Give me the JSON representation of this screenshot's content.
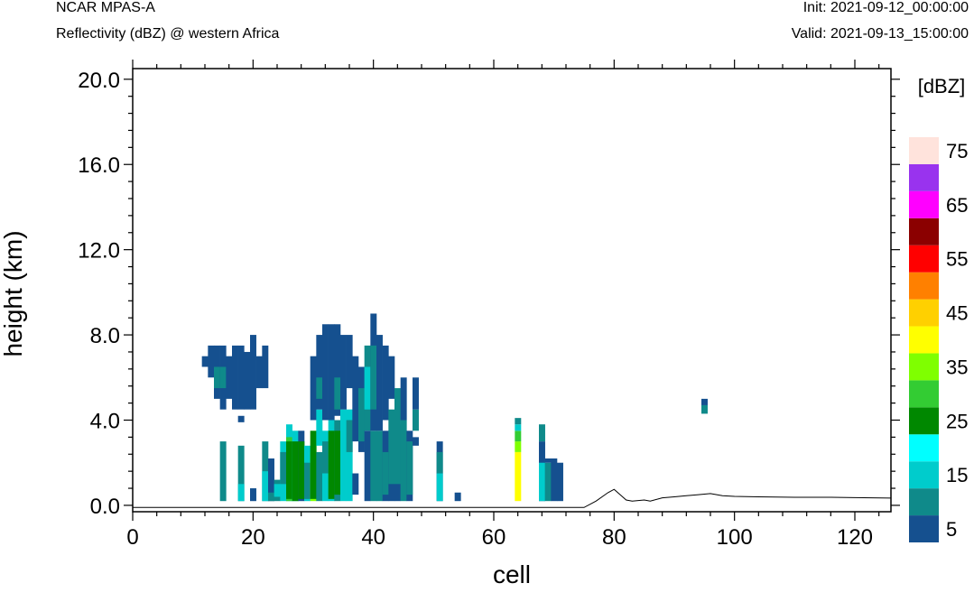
{
  "header": {
    "model": "NCAR MPAS-A",
    "field": "Reflectivity (dBZ) @ western Africa",
    "init": "Init: 2021-09-12_00:00:00",
    "valid": "Valid: 2021-09-13_15:00:00"
  },
  "chart_data": {
    "type": "heatmap",
    "xlabel": "cell",
    "ylabel": "height (km)",
    "xlim": [
      0,
      126
    ],
    "ylim": [
      -0.3,
      20.5
    ],
    "x_ticks": [
      0,
      20,
      40,
      60,
      80,
      100,
      120
    ],
    "y_ticks": [
      0,
      4,
      8,
      12,
      16,
      20
    ],
    "y_tick_labels": [
      "0.0",
      "4.0",
      "8.0",
      "12.0",
      "16.0",
      "20.0"
    ],
    "grid": false,
    "colorbar": {
      "unit": "[dBZ]",
      "levels": [
        5,
        10,
        15,
        20,
        25,
        30,
        35,
        40,
        45,
        50,
        55,
        60,
        65,
        70,
        75
      ],
      "labels": [
        "5",
        "15",
        "25",
        "35",
        "45",
        "55",
        "65",
        "75"
      ],
      "colors": [
        "#15508f",
        "#0f8a8a",
        "#00cccc",
        "#00ffff",
        "#008800",
        "#33cc33",
        "#7fff00",
        "#ffff00",
        "#ffd000",
        "#ff8000",
        "#ff0000",
        "#8b0000",
        "#ff00ff",
        "#9933ee",
        "#ffe3dc"
      ]
    },
    "terrain": [
      [
        0,
        -0.1
      ],
      [
        75,
        -0.1
      ],
      [
        77,
        0.2
      ],
      [
        79,
        0.6
      ],
      [
        80,
        0.75
      ],
      [
        81,
        0.5
      ],
      [
        82,
        0.25
      ],
      [
        83,
        0.2
      ],
      [
        85,
        0.25
      ],
      [
        86,
        0.2
      ],
      [
        88,
        0.35
      ],
      [
        90,
        0.4
      ],
      [
        92,
        0.45
      ],
      [
        94,
        0.5
      ],
      [
        96,
        0.55
      ],
      [
        98,
        0.45
      ],
      [
        100,
        0.42
      ],
      [
        104,
        0.4
      ],
      [
        110,
        0.38
      ],
      [
        116,
        0.38
      ],
      [
        120,
        0.36
      ],
      [
        126,
        0.34
      ]
    ],
    "columns": [
      {
        "cell": 12,
        "segments": [
          [
            6.5,
            7.0,
            5
          ]
        ]
      },
      {
        "cell": 13,
        "segments": [
          [
            6.0,
            7.5,
            5
          ]
        ]
      },
      {
        "cell": 14,
        "segments": [
          [
            5.0,
            7.5,
            5
          ],
          [
            5.5,
            6.5,
            10
          ]
        ]
      },
      {
        "cell": 15,
        "segments": [
          [
            0.2,
            3.0,
            10
          ],
          [
            4.5,
            7.5,
            5
          ],
          [
            5.5,
            6.5,
            10
          ]
        ]
      },
      {
        "cell": 16,
        "segments": [
          [
            5.0,
            7.0,
            5
          ]
        ]
      },
      {
        "cell": 17,
        "segments": [
          [
            4.5,
            7.5,
            5
          ]
        ]
      },
      {
        "cell": 18,
        "segments": [
          [
            0.2,
            2.8,
            10
          ],
          [
            0.2,
            1.0,
            15
          ],
          [
            3.9,
            4.2,
            5
          ],
          [
            4.5,
            7.5,
            5
          ]
        ]
      },
      {
        "cell": 19,
        "segments": [
          [
            4.5,
            7.2,
            5
          ]
        ]
      },
      {
        "cell": 20,
        "segments": [
          [
            0.2,
            0.8,
            5
          ],
          [
            4.5,
            8.0,
            5
          ]
        ]
      },
      {
        "cell": 21,
        "segments": [
          [
            5.5,
            7.0,
            5
          ]
        ]
      },
      {
        "cell": 22,
        "segments": [
          [
            0.2,
            3.0,
            10
          ],
          [
            0.2,
            1.6,
            15
          ],
          [
            5.5,
            7.5,
            5
          ]
        ]
      },
      {
        "cell": 23,
        "segments": [
          [
            0.2,
            2.2,
            5
          ],
          [
            0.2,
            0.6,
            10
          ]
        ]
      },
      {
        "cell": 24,
        "segments": [
          [
            0.2,
            1.2,
            10
          ],
          [
            0.4,
            1.0,
            15
          ]
        ]
      },
      {
        "cell": 25,
        "segments": [
          [
            0.2,
            3.0,
            15
          ],
          [
            1.0,
            2.5,
            10
          ]
        ]
      },
      {
        "cell": 26,
        "segments": [
          [
            0.2,
            3.8,
            15
          ],
          [
            0.2,
            3.2,
            30
          ],
          [
            0.3,
            3.0,
            25
          ]
        ]
      },
      {
        "cell": 27,
        "segments": [
          [
            0.2,
            3.5,
            15
          ],
          [
            0.2,
            3.0,
            25
          ]
        ]
      },
      {
        "cell": 28,
        "segments": [
          [
            0.2,
            3.5,
            5
          ],
          [
            0.3,
            3.0,
            25
          ]
        ]
      },
      {
        "cell": 29,
        "segments": [
          [
            0.2,
            2.8,
            15
          ],
          [
            0.3,
            2.0,
            10
          ]
        ]
      },
      {
        "cell": 30,
        "segments": [
          [
            0.2,
            2.5,
            35
          ],
          [
            0.3,
            3.5,
            25
          ],
          [
            4.0,
            7.0,
            5
          ]
        ]
      },
      {
        "cell": 31,
        "segments": [
          [
            0.2,
            2.5,
            10
          ],
          [
            2.8,
            4.5,
            15
          ],
          [
            4.5,
            8.0,
            5
          ],
          [
            5.0,
            6.0,
            10
          ]
        ]
      },
      {
        "cell": 32,
        "segments": [
          [
            0.2,
            3.5,
            15
          ],
          [
            1.5,
            3.0,
            10
          ],
          [
            4.0,
            8.5,
            5
          ]
        ]
      },
      {
        "cell": 33,
        "segments": [
          [
            0.2,
            4.0,
            15
          ],
          [
            0.3,
            3.5,
            25
          ],
          [
            4.0,
            8.5,
            5
          ]
        ]
      },
      {
        "cell": 34,
        "segments": [
          [
            0.2,
            4.0,
            10
          ],
          [
            0.5,
            3.5,
            25
          ],
          [
            4.2,
            8.5,
            5
          ],
          [
            4.5,
            6.0,
            10
          ]
        ]
      },
      {
        "cell": 35,
        "segments": [
          [
            0.2,
            4.5,
            15
          ],
          [
            4.5,
            8.0,
            5
          ]
        ]
      },
      {
        "cell": 36,
        "segments": [
          [
            0.2,
            4.5,
            15
          ],
          [
            2.5,
            4.0,
            10
          ],
          [
            5.5,
            8.0,
            5
          ]
        ]
      },
      {
        "cell": 37,
        "segments": [
          [
            0.5,
            1.5,
            5
          ],
          [
            3.0,
            7.0,
            5
          ]
        ]
      },
      {
        "cell": 38,
        "segments": [
          [
            2.5,
            6.5,
            5
          ],
          [
            3.0,
            5.5,
            10
          ]
        ]
      },
      {
        "cell": 39,
        "segments": [
          [
            0.2,
            3.5,
            5
          ],
          [
            3.5,
            7.5,
            10
          ],
          [
            4.5,
            6.5,
            15
          ]
        ]
      },
      {
        "cell": 40,
        "segments": [
          [
            0.2,
            3.5,
            10
          ],
          [
            3.5,
            9.0,
            5
          ],
          [
            4.5,
            7.5,
            10
          ]
        ]
      },
      {
        "cell": 41,
        "segments": [
          [
            0.2,
            3.5,
            10
          ],
          [
            3.5,
            8.0,
            5
          ]
        ]
      },
      {
        "cell": 42,
        "segments": [
          [
            0.2,
            3.5,
            5
          ],
          [
            0.5,
            2.5,
            10
          ],
          [
            4.0,
            7.5,
            5
          ]
        ]
      },
      {
        "cell": 43,
        "segments": [
          [
            0.2,
            3.5,
            5
          ],
          [
            1.0,
            4.5,
            10
          ],
          [
            5.0,
            7.0,
            5
          ]
        ]
      },
      {
        "cell": 44,
        "segments": [
          [
            0.2,
            3.8,
            5
          ],
          [
            1.0,
            5.5,
            10
          ]
        ]
      },
      {
        "cell": 45,
        "segments": [
          [
            0.2,
            4.0,
            10
          ],
          [
            4.0,
            6.0,
            5
          ]
        ]
      },
      {
        "cell": 46,
        "segments": [
          [
            0.2,
            3.5,
            5
          ],
          [
            0.5,
            3.0,
            10
          ]
        ]
      },
      {
        "cell": 47,
        "segments": [
          [
            2.8,
            3.2,
            5
          ],
          [
            3.5,
            4.5,
            10
          ],
          [
            4.5,
            6.0,
            5
          ]
        ]
      },
      {
        "cell": 51,
        "segments": [
          [
            0.2,
            3.0,
            5
          ],
          [
            0.2,
            1.5,
            15
          ],
          [
            1.5,
            2.5,
            10
          ]
        ]
      },
      {
        "cell": 54,
        "segments": [
          [
            0.2,
            0.6,
            5
          ]
        ]
      },
      {
        "cell": 64,
        "segments": [
          [
            0.2,
            2.5,
            40
          ],
          [
            2.5,
            3.0,
            35
          ],
          [
            3.0,
            3.5,
            30
          ],
          [
            3.5,
            3.8,
            15
          ],
          [
            3.8,
            4.1,
            10
          ]
        ]
      },
      {
        "cell": 68,
        "segments": [
          [
            0.2,
            3.0,
            5
          ],
          [
            0.2,
            2.0,
            15
          ],
          [
            3.0,
            3.8,
            10
          ]
        ]
      },
      {
        "cell": 69,
        "segments": [
          [
            0.2,
            2.0,
            10
          ],
          [
            2.0,
            2.2,
            5
          ]
        ]
      },
      {
        "cell": 70,
        "segments": [
          [
            0.2,
            2.2,
            5
          ]
        ]
      },
      {
        "cell": 71,
        "segments": [
          [
            0.2,
            2.0,
            5
          ]
        ]
      },
      {
        "cell": 95,
        "segments": [
          [
            4.3,
            4.7,
            10
          ],
          [
            4.7,
            5.0,
            5
          ]
        ]
      }
    ]
  }
}
